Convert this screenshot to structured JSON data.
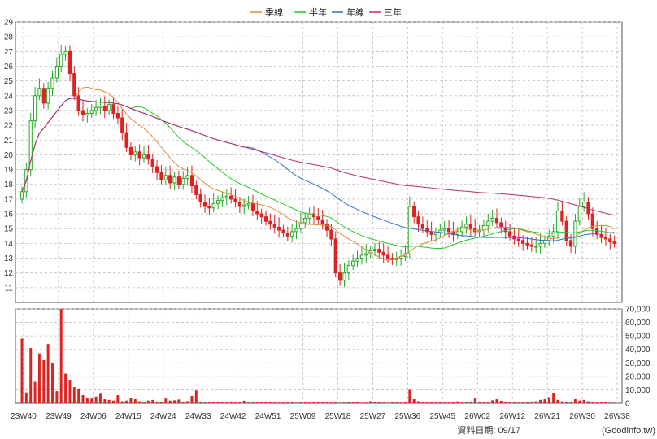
{
  "legend": [
    {
      "label": "季線",
      "color": "#e8883a"
    },
    {
      "label": "半年",
      "color": "#22cc22"
    },
    {
      "label": "年線",
      "color": "#2f6fd6"
    },
    {
      "label": "三年",
      "color": "#c02a6a"
    }
  ],
  "footer": {
    "date_label": "資料日期: 09/17",
    "source": "(Goodinfo.tw)"
  },
  "chart_data": {
    "type": "candlestick",
    "price_axis": {
      "min": 10,
      "max": 29,
      "ticks": [
        11,
        12,
        13,
        14,
        15,
        16,
        17,
        18,
        19,
        20,
        21,
        22,
        23,
        24,
        25,
        26,
        27,
        28,
        29
      ]
    },
    "volume_axis": {
      "min": 0,
      "max": 70000,
      "ticks": [
        "0",
        "10,000",
        "20,000",
        "30,000",
        "40,000",
        "50,000",
        "60,000",
        "70,000"
      ]
    },
    "x_labels": [
      "23W40",
      "23W49",
      "24W06",
      "24W15",
      "24W24",
      "24W33",
      "24W42",
      "24W51",
      "25W09",
      "25W18",
      "25W27",
      "25W36",
      "25W45",
      "26W02",
      "26W12",
      "26W21",
      "26W30",
      "26W38"
    ],
    "price_closes": [
      17.5,
      19.0,
      22.3,
      24.0,
      24.5,
      23.5,
      24.5,
      25.2,
      26.0,
      26.8,
      27.0,
      25.5,
      24.0,
      23.0,
      22.7,
      22.8,
      23.0,
      23.2,
      23.3,
      23.0,
      23.4,
      22.8,
      22.5,
      21.5,
      20.5,
      20.0,
      20.2,
      19.8,
      20.0,
      19.7,
      19.2,
      18.8,
      18.3,
      18.6,
      18.1,
      18.5,
      18.0,
      18.4,
      18.6,
      17.9,
      17.3,
      16.8,
      16.5,
      16.4,
      16.7,
      16.9,
      17.1,
      17.2,
      17.0,
      16.8,
      16.5,
      16.6,
      16.7,
      16.2,
      16.0,
      15.8,
      15.5,
      15.3,
      15.1,
      14.9,
      14.7,
      14.5,
      14.8,
      15.0,
      15.4,
      15.7,
      16.0,
      15.8,
      15.6,
      15.3,
      14.9,
      14.3,
      12.0,
      11.5,
      12.0,
      12.5,
      12.8,
      13.0,
      13.2,
      13.3,
      13.5,
      13.6,
      13.4,
      13.2,
      13.0,
      12.9,
      13.0,
      13.1,
      13.3,
      16.5,
      15.8,
      15.3,
      15.0,
      14.8,
      14.6,
      14.7,
      14.9,
      15.0,
      14.8,
      14.6,
      14.8,
      15.1,
      15.3,
      15.0,
      14.8,
      14.9,
      15.2,
      15.5,
      15.7,
      15.4,
      15.1,
      14.8,
      14.5,
      14.3,
      14.2,
      14.0,
      13.9,
      13.8,
      13.8,
      14.0,
      14.2,
      14.5,
      14.8,
      16.2,
      15.5,
      14.2,
      13.8,
      15.5,
      16.5,
      16.8,
      16.0,
      15.0,
      14.6,
      14.4,
      14.3,
      14.1,
      14.0
    ],
    "series": [
      {
        "name": "季線"
      },
      {
        "name": "半年"
      },
      {
        "name": "年線"
      },
      {
        "name": "三年"
      }
    ],
    "volumes": [
      48000,
      8000,
      41000,
      16000,
      37000,
      32000,
      44000,
      30000,
      9000,
      70000,
      22000,
      17000,
      12000,
      11000,
      6000,
      4000,
      3500,
      5000,
      7000,
      3000,
      2500,
      2000,
      6000,
      1500,
      2000,
      4000,
      3000,
      1500,
      1000,
      2000,
      2500,
      1000,
      1200,
      3500,
      2000,
      2200,
      2800,
      1200,
      1600,
      5500,
      9500,
      1000,
      800,
      1200,
      600,
      900,
      700,
      1100,
      1300,
      800,
      600,
      1900,
      500,
      600,
      700,
      1200,
      900,
      700,
      600,
      500,
      700,
      800,
      600,
      400,
      900,
      700,
      500,
      1300,
      800,
      700,
      600,
      500,
      600,
      400,
      500,
      700,
      800,
      600,
      400,
      500,
      1500,
      800,
      600,
      500,
      400,
      700,
      600,
      500,
      600,
      10000,
      3000,
      1500,
      1200,
      1000,
      900,
      700,
      600,
      800,
      1000,
      1200,
      1400,
      900,
      700,
      600,
      3500,
      800,
      900,
      1200,
      2200,
      3000,
      1800,
      900,
      700,
      600,
      500,
      800,
      900,
      1200,
      1500,
      2500,
      3000,
      4500,
      7500,
      2500,
      1500,
      1000,
      1200,
      3000,
      2000,
      2500,
      1500,
      1000,
      800,
      700,
      600,
      500,
      400
    ]
  }
}
